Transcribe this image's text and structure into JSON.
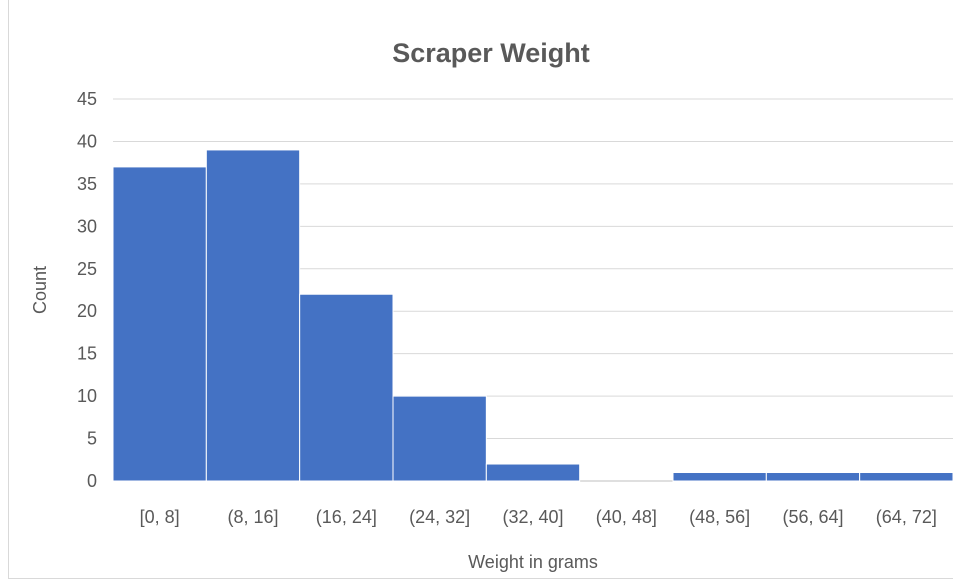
{
  "chart_data": {
    "type": "bar",
    "title": "Scraper Weight",
    "xlabel": "Weight in grams",
    "ylabel": "Count",
    "categories": [
      "[0, 8]",
      "(8, 16]",
      "(16, 24]",
      "(24, 32]",
      "(32, 40]",
      "(40, 48]",
      "(48, 56]",
      "(56, 64]",
      "(64, 72]"
    ],
    "values": [
      37,
      39,
      22,
      10,
      2,
      0,
      1,
      1,
      1
    ],
    "ylim": [
      0,
      45
    ],
    "yticks": [
      0,
      5,
      10,
      15,
      20,
      25,
      30,
      35,
      40,
      45
    ],
    "grid": true,
    "legend": "none",
    "bar_color": "#4472c4"
  }
}
